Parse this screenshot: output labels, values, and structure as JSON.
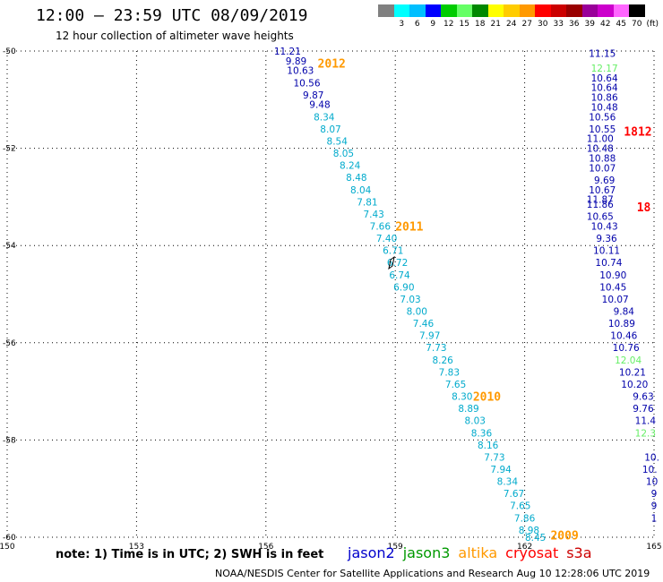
{
  "header": {
    "title": "12:00 – 23:59 UTC 08/09/2019",
    "subtitle": "12 hour collection of altimeter wave heights"
  },
  "legend": {
    "labels": [
      "",
      "3",
      "6",
      "9",
      "12",
      "15",
      "18",
      "21",
      "24",
      "27",
      "30",
      "33",
      "36",
      "39",
      "42",
      "45",
      "70",
      "(ft)"
    ],
    "colors": [
      "#808080",
      "#00ffff",
      "#00bfff",
      "#0000ff",
      "#00cc00",
      "#66ff66",
      "#008800",
      "#ffff00",
      "#ffcc00",
      "#ff9900",
      "#ff0000",
      "#cc0000",
      "#990000",
      "#990099",
      "#cc00cc",
      "#ff66ff",
      "#000000"
    ]
  },
  "footer": {
    "note": "note: 1) Time is in UTC; 2) SWH is in feet",
    "credit": "NOAA/NESDIS Center for Satellite Applications and Research    Aug 10 12:28:06 UTC 2019",
    "satellites": [
      {
        "name": "jason2",
        "color": "#0000cc"
      },
      {
        "name": "jason3",
        "color": "#009900"
      },
      {
        "name": "altika",
        "color": "#ff9900"
      },
      {
        "name": "cryosat",
        "color": "#ff0000"
      },
      {
        "name": "s3a",
        "color": "#cc0000"
      }
    ]
  },
  "chart_data": {
    "type": "scatter",
    "xlim": [
      150,
      165
    ],
    "ylim": [
      -60,
      -50
    ],
    "xticks": [
      "150",
      "153",
      "156",
      "159",
      "162",
      "165"
    ],
    "yticks": [
      "-50",
      "-52",
      "-54",
      "-56",
      "-58",
      "-60"
    ],
    "grid": true,
    "series": [
      {
        "color": "#0000aa",
        "points": [
          {
            "x": 156.5,
            "y": -50.0,
            "label": "11.21"
          },
          {
            "x": 156.7,
            "y": -50.2,
            "label": "9.89"
          },
          {
            "x": 156.8,
            "y": -50.4,
            "label": "10.63"
          },
          {
            "x": 156.95,
            "y": -50.65,
            "label": "10.56"
          },
          {
            "x": 157.1,
            "y": -50.9,
            "label": "9.87"
          },
          {
            "x": 157.25,
            "y": -51.1,
            "label": "9.48"
          }
        ]
      },
      {
        "color": "#00aacc",
        "points": [
          {
            "x": 157.35,
            "y": -51.35,
            "label": "8.34"
          },
          {
            "x": 157.5,
            "y": -51.6,
            "label": "8.07"
          },
          {
            "x": 157.65,
            "y": -51.85,
            "label": "8.54"
          },
          {
            "x": 157.8,
            "y": -52.1,
            "label": "8.05"
          },
          {
            "x": 157.95,
            "y": -52.35,
            "label": "8.24"
          },
          {
            "x": 158.1,
            "y": -52.6,
            "label": "8.48"
          },
          {
            "x": 158.2,
            "y": -52.85,
            "label": "8.04"
          },
          {
            "x": 158.35,
            "y": -53.1,
            "label": "7.81"
          },
          {
            "x": 158.5,
            "y": -53.35,
            "label": "7.43"
          },
          {
            "x": 158.65,
            "y": -53.6,
            "label": "7.66"
          },
          {
            "x": 158.8,
            "y": -53.85,
            "label": "7.40"
          },
          {
            "x": 158.95,
            "y": -54.1,
            "label": "6.71"
          },
          {
            "x": 159.05,
            "y": -54.35,
            "label": "6.72"
          },
          {
            "x": 159.1,
            "y": -54.6,
            "label": "6.74"
          },
          {
            "x": 159.2,
            "y": -54.85,
            "label": "6.90"
          },
          {
            "x": 159.35,
            "y": -55.1,
            "label": "7.03"
          },
          {
            "x": 159.5,
            "y": -55.35,
            "label": "8.00"
          },
          {
            "x": 159.65,
            "y": -55.6,
            "label": "7.46"
          },
          {
            "x": 159.8,
            "y": -55.85,
            "label": "7.97"
          },
          {
            "x": 159.95,
            "y": -56.1,
            "label": "7.73"
          },
          {
            "x": 160.1,
            "y": -56.35,
            "label": "8.26"
          },
          {
            "x": 160.25,
            "y": -56.6,
            "label": "7.83"
          },
          {
            "x": 160.4,
            "y": -56.85,
            "label": "7.65"
          },
          {
            "x": 160.55,
            "y": -57.1,
            "label": "8.30"
          },
          {
            "x": 160.7,
            "y": -57.35,
            "label": "8.89"
          },
          {
            "x": 160.85,
            "y": -57.6,
            "label": "8.03"
          },
          {
            "x": 161.0,
            "y": -57.85,
            "label": "8.36"
          },
          {
            "x": 161.15,
            "y": -58.1,
            "label": "8.16"
          },
          {
            "x": 161.3,
            "y": -58.35,
            "label": "7.73"
          },
          {
            "x": 161.45,
            "y": -58.6,
            "label": "7.94"
          },
          {
            "x": 161.6,
            "y": -58.85,
            "label": "8.34"
          },
          {
            "x": 161.75,
            "y": -59.1,
            "label": "7.67"
          },
          {
            "x": 161.9,
            "y": -59.35,
            "label": "7.65"
          },
          {
            "x": 162.0,
            "y": -59.6,
            "label": "7.86"
          },
          {
            "x": 162.1,
            "y": -59.85,
            "label": "8.98"
          },
          {
            "x": 162.25,
            "y": -60.0,
            "label": "8.45"
          }
        ]
      },
      {
        "color": "#0000aa",
        "points": [
          {
            "x": 163.8,
            "y": -50.05,
            "label": "11.15"
          },
          {
            "x": 163.85,
            "y": -50.55,
            "label": "10.64"
          },
          {
            "x": 163.85,
            "y": -50.75,
            "label": "10.64"
          },
          {
            "x": 163.85,
            "y": -50.95,
            "label": "10.86"
          },
          {
            "x": 163.85,
            "y": -51.15,
            "label": "10.48"
          },
          {
            "x": 163.8,
            "y": -51.35,
            "label": "10.56"
          },
          {
            "x": 163.8,
            "y": -51.6,
            "label": "10.55"
          },
          {
            "x": 163.75,
            "y": -51.8,
            "label": "11.00"
          },
          {
            "x": 163.75,
            "y": -52.0,
            "label": "10.48"
          },
          {
            "x": 163.8,
            "y": -52.2,
            "label": "10.88"
          },
          {
            "x": 163.8,
            "y": -52.4,
            "label": "10.07"
          },
          {
            "x": 163.85,
            "y": -52.65,
            "label": "9.69"
          },
          {
            "x": 163.8,
            "y": -52.85,
            "label": "10.67"
          },
          {
            "x": 163.75,
            "y": -53.05,
            "label": "11.87"
          },
          {
            "x": 163.75,
            "y": -53.15,
            "label": "11.86"
          },
          {
            "x": 163.75,
            "y": -53.4,
            "label": "10.65"
          },
          {
            "x": 163.85,
            "y": -53.6,
            "label": "10.43"
          },
          {
            "x": 163.9,
            "y": -53.85,
            "label": "9.36"
          },
          {
            "x": 163.9,
            "y": -54.1,
            "label": "10.11"
          },
          {
            "x": 163.95,
            "y": -54.35,
            "label": "10.74"
          },
          {
            "x": 164.05,
            "y": -54.6,
            "label": "10.90"
          },
          {
            "x": 164.05,
            "y": -54.85,
            "label": "10.45"
          },
          {
            "x": 164.1,
            "y": -55.1,
            "label": "10.07"
          },
          {
            "x": 164.3,
            "y": -55.35,
            "label": "9.84"
          },
          {
            "x": 164.25,
            "y": -55.6,
            "label": "10.89"
          },
          {
            "x": 164.3,
            "y": -55.85,
            "label": "10.46"
          },
          {
            "x": 164.35,
            "y": -56.1,
            "label": "10.76"
          },
          {
            "x": 164.5,
            "y": -56.6,
            "label": "10.21"
          },
          {
            "x": 164.55,
            "y": -56.85,
            "label": "10.20"
          },
          {
            "x": 164.75,
            "y": -57.1,
            "label": "9.63"
          },
          {
            "x": 164.75,
            "y": -57.35,
            "label": "9.76"
          },
          {
            "x": 164.8,
            "y": -57.6,
            "label": "11.4"
          },
          {
            "x": 164.95,
            "y": -58.35,
            "label": "10."
          },
          {
            "x": 164.9,
            "y": -58.6,
            "label": "10."
          },
          {
            "x": 164.95,
            "y": -58.85,
            "label": "10"
          },
          {
            "x": 165.0,
            "y": -59.1,
            "label": "9"
          },
          {
            "x": 165.0,
            "y": -59.35,
            "label": "9"
          },
          {
            "x": 165.0,
            "y": -59.6,
            "label": "1"
          }
        ]
      },
      {
        "color": "#66ee66",
        "points": [
          {
            "x": 163.85,
            "y": -50.35,
            "label": "12.17"
          },
          {
            "x": 164.4,
            "y": -56.35,
            "label": "12.04"
          },
          {
            "x": 164.8,
            "y": -57.85,
            "label": "12.3"
          }
        ]
      }
    ],
    "annotations": [
      {
        "x": 157.2,
        "y": -50.25,
        "text": "2012",
        "color": "#ff9900"
      },
      {
        "x": 159.0,
        "y": -53.6,
        "text": "2011",
        "color": "#ff9900"
      },
      {
        "x": 160.8,
        "y": -57.1,
        "text": "2010",
        "color": "#ff9900"
      },
      {
        "x": 162.6,
        "y": -59.95,
        "text": "2009",
        "color": "#ff9900"
      },
      {
        "x": 164.3,
        "y": -51.65,
        "text": "1812",
        "color": "#ff0000"
      },
      {
        "x": 164.6,
        "y": -53.2,
        "text": "18",
        "color": "#ff0000"
      }
    ]
  }
}
